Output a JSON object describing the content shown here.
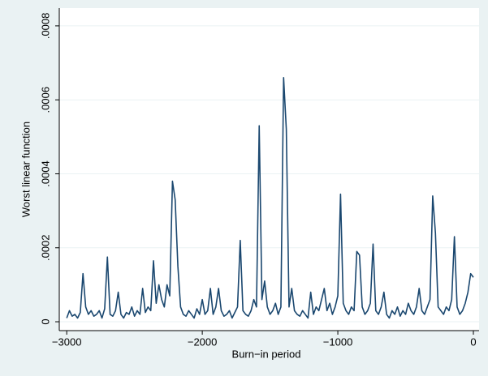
{
  "chart_data": {
    "type": "line",
    "xlabel": "Burn−in period",
    "ylabel": "Worst linear function",
    "xlim": [
      -3055,
      42
    ],
    "ylim": [
      -2.4e-05,
      0.000848
    ],
    "xticks": [
      {
        "value": -3000,
        "label": "−3000"
      },
      {
        "value": -2000,
        "label": "−2000"
      },
      {
        "value": -1000,
        "label": "−1000"
      },
      0
    ],
    "yticks": [
      0,
      {
        "value": 0.0002,
        "label": ".0002"
      },
      {
        "value": 0.0004,
        "label": ".0004"
      },
      {
        "value": 0.0006,
        "label": ".0006"
      },
      {
        "value": 0.0008,
        "label": ".0008"
      }
    ],
    "grid": true,
    "x": [
      -3000,
      -2980,
      -2960,
      -2940,
      -2920,
      -2900,
      -2880,
      -2860,
      -2840,
      -2820,
      -2800,
      -2780,
      -2760,
      -2740,
      -2720,
      -2700,
      -2680,
      -2660,
      -2640,
      -2620,
      -2600,
      -2580,
      -2560,
      -2540,
      -2520,
      -2500,
      -2480,
      -2460,
      -2440,
      -2420,
      -2400,
      -2380,
      -2360,
      -2340,
      -2320,
      -2300,
      -2280,
      -2260,
      -2240,
      -2220,
      -2200,
      -2180,
      -2160,
      -2140,
      -2120,
      -2100,
      -2080,
      -2060,
      -2040,
      -2020,
      -2000,
      -1980,
      -1960,
      -1940,
      -1920,
      -1900,
      -1880,
      -1860,
      -1840,
      -1820,
      -1800,
      -1780,
      -1760,
      -1740,
      -1720,
      -1700,
      -1680,
      -1660,
      -1640,
      -1620,
      -1600,
      -1580,
      -1560,
      -1540,
      -1520,
      -1500,
      -1480,
      -1460,
      -1440,
      -1420,
      -1400,
      -1380,
      -1360,
      -1340,
      -1320,
      -1300,
      -1280,
      -1260,
      -1240,
      -1220,
      -1200,
      -1180,
      -1160,
      -1140,
      -1120,
      -1100,
      -1080,
      -1060,
      -1040,
      -1020,
      -1000,
      -980,
      -960,
      -940,
      -920,
      -900,
      -880,
      -860,
      -840,
      -820,
      -800,
      -780,
      -760,
      -740,
      -720,
      -700,
      -680,
      -660,
      -640,
      -620,
      -600,
      -580,
      -560,
      -540,
      -520,
      -500,
      -480,
      -460,
      -440,
      -420,
      -400,
      -380,
      -360,
      -340,
      -320,
      -300,
      -280,
      -260,
      -240,
      -220,
      -200,
      -180,
      -160,
      -140,
      -120,
      -100,
      -80,
      -60,
      -40,
      -20,
      0
    ],
    "series": [
      {
        "color": "#1a476f",
        "values": [
          1e-05,
          3e-05,
          1.5e-05,
          2e-05,
          1e-05,
          2.5e-05,
          0.00013,
          4e-05,
          2e-05,
          3e-05,
          1.5e-05,
          2e-05,
          3e-05,
          1e-05,
          3.5e-05,
          0.000175,
          2e-05,
          1.5e-05,
          3e-05,
          8e-05,
          2e-05,
          1e-05,
          2.5e-05,
          2e-05,
          4e-05,
          1.5e-05,
          3e-05,
          2e-05,
          9e-05,
          2.5e-05,
          4e-05,
          3e-05,
          0.000165,
          5e-05,
          0.0001,
          6e-05,
          4e-05,
          0.0001,
          7e-05,
          0.00038,
          0.00033,
          0.00015,
          4e-05,
          2e-05,
          1.5e-05,
          3e-05,
          2e-05,
          1e-05,
          3.5e-05,
          2e-05,
          6e-05,
          2e-05,
          3e-05,
          9e-05,
          2e-05,
          4e-05,
          9e-05,
          3e-05,
          1.5e-05,
          2e-05,
          3e-05,
          1e-05,
          2.5e-05,
          4e-05,
          0.00022,
          3e-05,
          2e-05,
          1.5e-05,
          3e-05,
          6e-05,
          4e-05,
          0.00053,
          6e-05,
          0.00011,
          4e-05,
          2e-05,
          3e-05,
          5e-05,
          2e-05,
          4e-05,
          0.00066,
          0.00052,
          4e-05,
          9e-05,
          3e-05,
          2e-05,
          1.5e-05,
          3e-05,
          2e-05,
          1e-05,
          8e-05,
          2e-05,
          4e-05,
          3e-05,
          6e-05,
          9e-05,
          3e-05,
          5e-05,
          2e-05,
          4e-05,
          7e-05,
          0.000345,
          5e-05,
          3e-05,
          2e-05,
          4e-05,
          3e-05,
          0.00019,
          0.00018,
          4e-05,
          2e-05,
          3e-05,
          5e-05,
          0.00021,
          3e-05,
          2e-05,
          4e-05,
          8e-05,
          2e-05,
          1e-05,
          3e-05,
          2e-05,
          4e-05,
          1.5e-05,
          3e-05,
          2e-05,
          5e-05,
          3e-05,
          2e-05,
          4e-05,
          9e-05,
          3e-05,
          2e-05,
          4e-05,
          6e-05,
          0.00034,
          0.00024,
          4e-05,
          3e-05,
          2e-05,
          4e-05,
          3e-05,
          6e-05,
          0.00023,
          4e-05,
          2e-05,
          3e-05,
          5e-05,
          8e-05,
          0.00013,
          0.00012
        ]
      }
    ]
  }
}
